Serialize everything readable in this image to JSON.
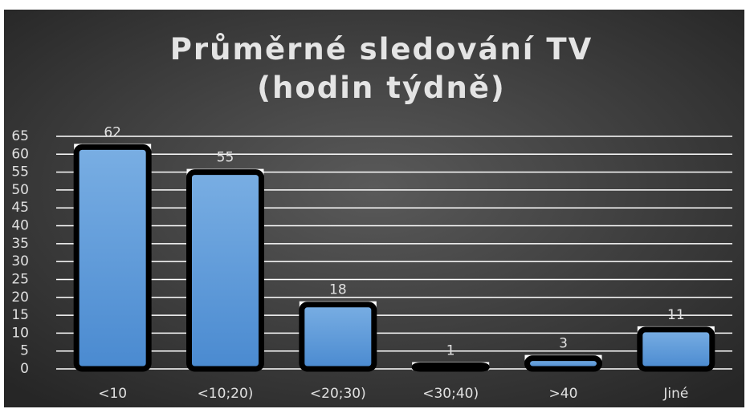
{
  "chart_data": {
    "type": "bar",
    "title": "Průměrné sledování TV (hodin týdně)",
    "categories": [
      "<10",
      "<10;20)",
      "<20;30)",
      "<30;40)",
      ">40",
      "Jiné"
    ],
    "values": [
      62,
      55,
      18,
      1,
      3,
      11
    ],
    "color": "#5b9bd5",
    "ylim": [
      0,
      65
    ],
    "yticks": [
      0,
      5,
      10,
      15,
      20,
      25,
      30,
      35,
      40,
      45,
      50,
      55,
      60,
      65
    ],
    "grid": true
  }
}
